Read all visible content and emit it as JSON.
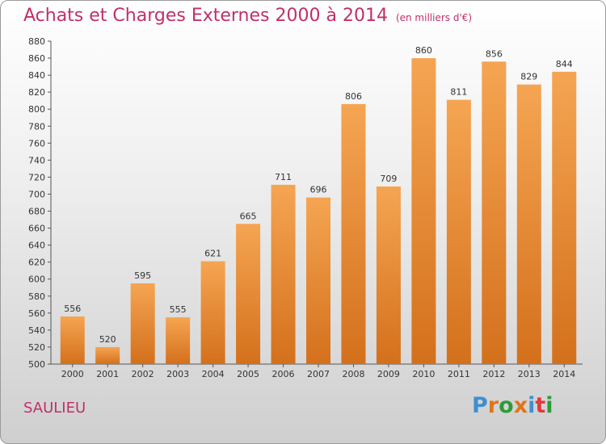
{
  "header": {
    "title": "Achats et Charges Externes 2000 à 2014",
    "subtitle": "(en milliers d'€)"
  },
  "footer": {
    "commune": "SAULIEU",
    "logo_text": "Proxiti"
  },
  "colors": {
    "title": "#c0306a",
    "bar_top": "#f5a552",
    "bar_bottom": "#d4701c",
    "logo_letters": [
      "#3f8fd0",
      "#e0741a",
      "#2f9a3a",
      "#e0741a",
      "#3f8fd0",
      "#e03a3a",
      "#2f9a3a"
    ]
  },
  "chart_data": {
    "type": "bar",
    "title": "Achats et Charges Externes 2000 à 2014",
    "categories": [
      "2000",
      "2001",
      "2002",
      "2003",
      "2004",
      "2005",
      "2006",
      "2007",
      "2008",
      "2009",
      "2010",
      "2011",
      "2012",
      "2013",
      "2014"
    ],
    "values": [
      556,
      520,
      595,
      555,
      621,
      665,
      711,
      696,
      806,
      709,
      860,
      811,
      856,
      829,
      844
    ],
    "ylim": [
      500,
      880
    ],
    "ytick_step": 20,
    "grid": false,
    "xlabel": "",
    "ylabel": ""
  }
}
